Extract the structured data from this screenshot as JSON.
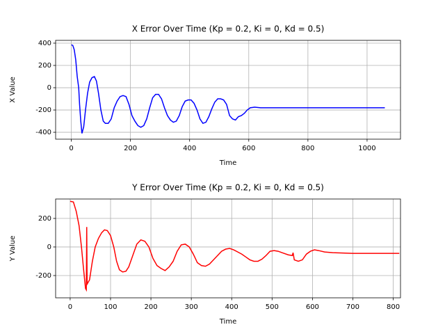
{
  "chart_data": [
    {
      "type": "line",
      "title": "X Error Over Time (Kp = 0.2, Ki = 0, Kd = 0.5)",
      "x_label": "Time",
      "y_label": "X Value",
      "color": "#0000ff",
      "grid": true,
      "x": [
        0,
        5,
        10,
        15,
        20,
        25,
        28,
        32,
        36,
        42,
        48,
        55,
        62,
        70,
        78,
        85,
        92,
        100,
        108,
        115,
        125,
        135,
        145,
        155,
        165,
        175,
        185,
        195,
        205,
        215,
        225,
        235,
        245,
        255,
        265,
        275,
        285,
        295,
        305,
        315,
        325,
        335,
        345,
        355,
        365,
        375,
        385,
        395,
        405,
        415,
        425,
        435,
        445,
        455,
        465,
        475,
        485,
        495,
        505,
        515,
        525,
        535,
        545,
        555,
        565,
        575,
        585,
        595,
        605,
        620,
        640,
        700,
        800,
        900,
        1000,
        1060
      ],
      "values": [
        385,
        380,
        340,
        250,
        100,
        0,
        -150,
        -300,
        -410,
        -350,
        -200,
        -50,
        50,
        90,
        100,
        60,
        -50,
        -200,
        -300,
        -320,
        -320,
        -280,
        -180,
        -120,
        -80,
        -70,
        -80,
        -150,
        -250,
        -300,
        -340,
        -355,
        -340,
        -280,
        -180,
        -90,
        -60,
        -60,
        -100,
        -180,
        -250,
        -290,
        -310,
        -300,
        -250,
        -170,
        -120,
        -110,
        -110,
        -140,
        -200,
        -280,
        -320,
        -310,
        -260,
        -190,
        -130,
        -100,
        -100,
        -110,
        -150,
        -250,
        -280,
        -290,
        -260,
        -250,
        -230,
        -200,
        -180,
        -175,
        -180,
        -180,
        -180,
        -180,
        -180,
        -180
      ],
      "xlim": [
        -53,
        1113
      ],
      "ylim": [
        -462,
        425
      ],
      "xticks": [
        0,
        200,
        400,
        600,
        800,
        1000
      ],
      "yticks": [
        -400,
        -200,
        0,
        200,
        400
      ]
    },
    {
      "type": "line",
      "title": "Y Error Over Time (Kp = 0.2, Ki = 0, Kd = 0.5)",
      "x_label": "Time",
      "y_label": "Y Value",
      "color": "#ff0000",
      "grid": true,
      "x": [
        0,
        8,
        15,
        22,
        28,
        33,
        38,
        40,
        41,
        42,
        48,
        55,
        62,
        70,
        78,
        85,
        92,
        100,
        108,
        115,
        122,
        130,
        138,
        145,
        155,
        165,
        175,
        185,
        195,
        205,
        215,
        225,
        235,
        245,
        255,
        265,
        275,
        285,
        295,
        305,
        315,
        325,
        335,
        345,
        355,
        365,
        375,
        385,
        395,
        405,
        415,
        425,
        435,
        445,
        455,
        465,
        475,
        485,
        495,
        505,
        515,
        525,
        540,
        550,
        552,
        555,
        565,
        575,
        585,
        595,
        605,
        615,
        630,
        650,
        700,
        750,
        800,
        815
      ],
      "values": [
        320,
        315,
        250,
        150,
        0,
        -150,
        -290,
        -300,
        140,
        -260,
        -230,
        -100,
        0,
        60,
        100,
        120,
        115,
        80,
        0,
        -100,
        -160,
        -175,
        -170,
        -140,
        -60,
        20,
        50,
        40,
        0,
        -80,
        -130,
        -150,
        -165,
        -140,
        -100,
        -30,
        15,
        20,
        0,
        -50,
        -110,
        -130,
        -135,
        -120,
        -90,
        -60,
        -30,
        -15,
        -10,
        -20,
        -35,
        -50,
        -70,
        -90,
        -100,
        -100,
        -85,
        -60,
        -30,
        -25,
        -30,
        -40,
        -55,
        -60,
        -40,
        -90,
        -100,
        -90,
        -50,
        -30,
        -20,
        -25,
        -35,
        -40,
        -45,
        -45,
        -45,
        -45
      ],
      "xlim": [
        -36,
        818
      ],
      "ylim": [
        -356,
        336
      ],
      "xticks": [
        0,
        100,
        200,
        300,
        400,
        500,
        600,
        700,
        800
      ],
      "yticks": [
        -200,
        0,
        200
      ]
    }
  ]
}
